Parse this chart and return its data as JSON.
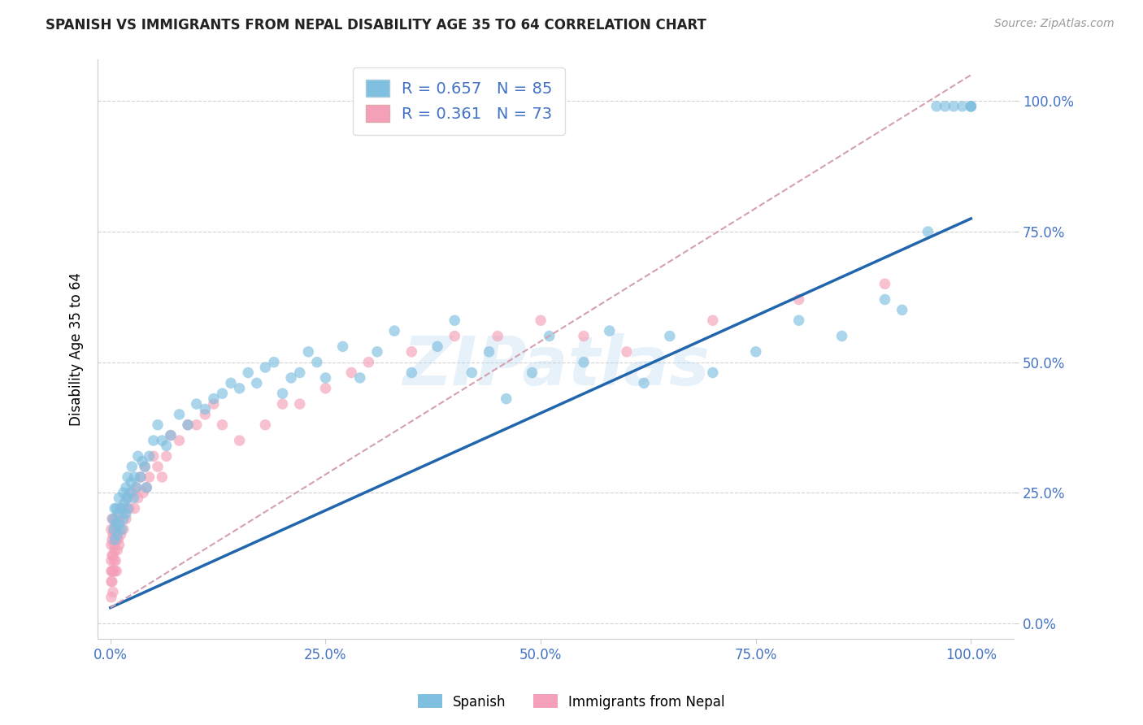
{
  "title": "SPANISH VS IMMIGRANTS FROM NEPAL DISABILITY AGE 35 TO 64 CORRELATION CHART",
  "source": "Source: ZipAtlas.com",
  "ylabel": "Disability Age 35 to 64",
  "blue_color": "#7fbfdf",
  "pink_color": "#f4a0b8",
  "blue_line_color": "#2166ac",
  "pink_line_color": "#d4a0b0",
  "blue_R": 0.657,
  "blue_N": 85,
  "pink_R": 0.361,
  "pink_N": 73,
  "watermark": "ZIPatlas",
  "legend_label_blue": "Spanish",
  "legend_label_pink": "Immigrants from Nepal",
  "tick_color": "#4472c4",
  "blue_reg": [
    0.0,
    0.03,
    1.0,
    0.775
  ],
  "pink_reg": [
    0.0,
    0.03,
    1.0,
    1.05
  ],
  "blue_points_x": [
    0.003,
    0.004,
    0.005,
    0.005,
    0.006,
    0.007,
    0.008,
    0.009,
    0.01,
    0.01,
    0.012,
    0.013,
    0.015,
    0.015,
    0.016,
    0.018,
    0.018,
    0.019,
    0.02,
    0.02,
    0.022,
    0.024,
    0.025,
    0.027,
    0.028,
    0.03,
    0.032,
    0.035,
    0.037,
    0.04,
    0.042,
    0.045,
    0.05,
    0.055,
    0.06,
    0.065,
    0.07,
    0.08,
    0.09,
    0.1,
    0.11,
    0.12,
    0.13,
    0.14,
    0.15,
    0.16,
    0.17,
    0.18,
    0.19,
    0.2,
    0.21,
    0.22,
    0.23,
    0.24,
    0.25,
    0.27,
    0.29,
    0.31,
    0.33,
    0.35,
    0.38,
    0.4,
    0.42,
    0.44,
    0.46,
    0.49,
    0.51,
    0.55,
    0.58,
    0.62,
    0.65,
    0.7,
    0.75,
    0.8,
    0.85,
    0.9,
    0.92,
    0.95,
    0.96,
    0.97,
    0.98,
    0.99,
    1.0,
    1.0,
    1.0
  ],
  "blue_points_y": [
    0.2,
    0.18,
    0.22,
    0.16,
    0.19,
    0.22,
    0.17,
    0.21,
    0.24,
    0.19,
    0.22,
    0.18,
    0.25,
    0.2,
    0.23,
    0.26,
    0.21,
    0.24,
    0.22,
    0.28,
    0.25,
    0.27,
    0.3,
    0.24,
    0.28,
    0.26,
    0.32,
    0.28,
    0.31,
    0.3,
    0.26,
    0.32,
    0.35,
    0.38,
    0.35,
    0.34,
    0.36,
    0.4,
    0.38,
    0.42,
    0.41,
    0.43,
    0.44,
    0.46,
    0.45,
    0.48,
    0.46,
    0.49,
    0.5,
    0.44,
    0.47,
    0.48,
    0.52,
    0.5,
    0.47,
    0.53,
    0.47,
    0.52,
    0.56,
    0.48,
    0.53,
    0.58,
    0.48,
    0.52,
    0.43,
    0.48,
    0.55,
    0.5,
    0.56,
    0.46,
    0.55,
    0.48,
    0.52,
    0.58,
    0.55,
    0.62,
    0.6,
    0.75,
    0.99,
    0.99,
    0.99,
    0.99,
    0.99,
    0.99,
    0.99
  ],
  "pink_points_x": [
    0.001,
    0.001,
    0.001,
    0.001,
    0.001,
    0.001,
    0.002,
    0.002,
    0.002,
    0.002,
    0.002,
    0.003,
    0.003,
    0.003,
    0.003,
    0.004,
    0.004,
    0.004,
    0.005,
    0.005,
    0.005,
    0.005,
    0.006,
    0.006,
    0.007,
    0.007,
    0.008,
    0.009,
    0.01,
    0.01,
    0.012,
    0.013,
    0.015,
    0.016,
    0.018,
    0.02,
    0.022,
    0.025,
    0.028,
    0.03,
    0.032,
    0.035,
    0.038,
    0.04,
    0.042,
    0.045,
    0.05,
    0.055,
    0.06,
    0.065,
    0.07,
    0.08,
    0.09,
    0.1,
    0.11,
    0.12,
    0.13,
    0.15,
    0.18,
    0.2,
    0.22,
    0.25,
    0.28,
    0.3,
    0.35,
    0.4,
    0.45,
    0.5,
    0.55,
    0.6,
    0.7,
    0.8,
    0.9
  ],
  "pink_points_y": [
    0.08,
    0.1,
    0.12,
    0.15,
    0.18,
    0.05,
    0.1,
    0.13,
    0.16,
    0.08,
    0.2,
    0.1,
    0.13,
    0.17,
    0.06,
    0.12,
    0.15,
    0.18,
    0.1,
    0.14,
    0.17,
    0.2,
    0.12,
    0.18,
    0.1,
    0.16,
    0.14,
    0.16,
    0.15,
    0.2,
    0.17,
    0.22,
    0.18,
    0.22,
    0.2,
    0.24,
    0.22,
    0.25,
    0.22,
    0.26,
    0.24,
    0.28,
    0.25,
    0.3,
    0.26,
    0.28,
    0.32,
    0.3,
    0.28,
    0.32,
    0.36,
    0.35,
    0.38,
    0.38,
    0.4,
    0.42,
    0.38,
    0.35,
    0.38,
    0.42,
    0.42,
    0.45,
    0.48,
    0.5,
    0.52,
    0.55,
    0.55,
    0.58,
    0.55,
    0.52,
    0.58,
    0.62,
    0.65
  ]
}
